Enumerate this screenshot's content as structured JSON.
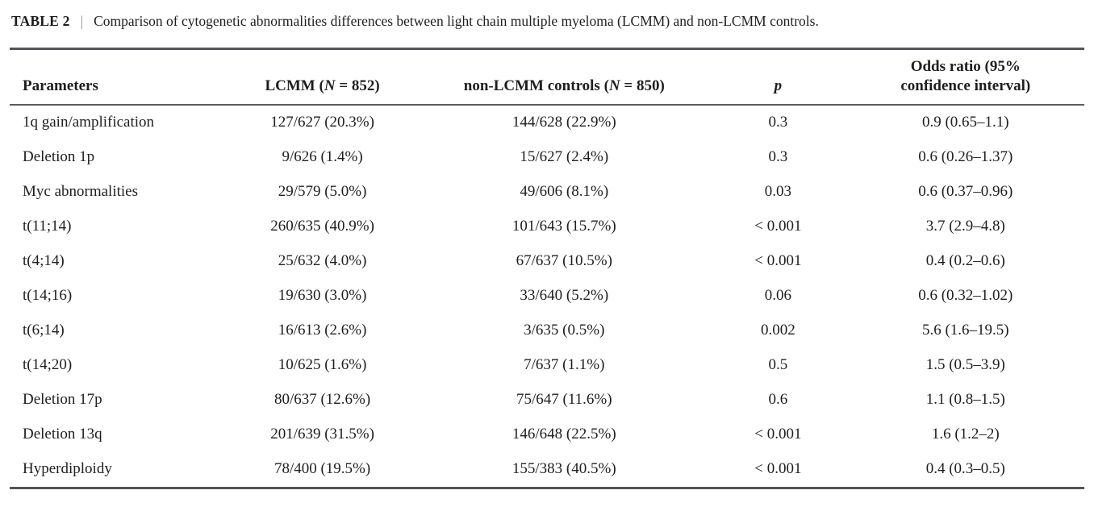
{
  "colors": {
    "text": "#1e1e20",
    "rule": "#54555b",
    "caption_divider": "#8c8c8c",
    "background": "#ffffff"
  },
  "caption": {
    "label": "TABLE 2",
    "divider": "|",
    "text": "Comparison of cytogenetic abnormalities differences between light chain multiple myeloma (LCMM) and non-LCMM controls."
  },
  "table": {
    "columns": [
      {
        "label": "Parameters"
      },
      {
        "pre": "LCMM (",
        "italic": "N",
        "post": " = 852)"
      },
      {
        "pre": "non-LCMM controls (",
        "italic": "N",
        "post": " = 850)"
      },
      {
        "italic": "p"
      },
      {
        "label": "Odds ratio (95% confidence interval)"
      }
    ],
    "rows": [
      {
        "parameter": "1q gain/amplification",
        "lcmm": "127/627 (20.3%)",
        "non_lcmm": "144/628 (22.9%)",
        "p": "0.3",
        "odds_ratio": "0.9 (0.65–1.1)"
      },
      {
        "parameter": "Deletion 1p",
        "lcmm": "9/626 (1.4%)",
        "non_lcmm": "15/627 (2.4%)",
        "p": "0.3",
        "odds_ratio": "0.6 (0.26–1.37)"
      },
      {
        "parameter": "Myc abnormalities",
        "lcmm": "29/579 (5.0%)",
        "non_lcmm": "49/606 (8.1%)",
        "p": "0.03",
        "odds_ratio": "0.6 (0.37–0.96)"
      },
      {
        "parameter": "t(11;14)",
        "lcmm": "260/635 (40.9%)",
        "non_lcmm": "101/643 (15.7%)",
        "p": "< 0.001",
        "odds_ratio": "3.7 (2.9–4.8)"
      },
      {
        "parameter": "t(4;14)",
        "lcmm": "25/632 (4.0%)",
        "non_lcmm": "67/637 (10.5%)",
        "p": "< 0.001",
        "odds_ratio": "0.4 (0.2–0.6)"
      },
      {
        "parameter": "t(14;16)",
        "lcmm": "19/630 (3.0%)",
        "non_lcmm": "33/640 (5.2%)",
        "p": "0.06",
        "odds_ratio": "0.6 (0.32–1.02)"
      },
      {
        "parameter": "t(6;14)",
        "lcmm": "16/613 (2.6%)",
        "non_lcmm": "3/635 (0.5%)",
        "p": "0.002",
        "odds_ratio": "5.6 (1.6–19.5)"
      },
      {
        "parameter": "t(14;20)",
        "lcmm": "10/625 (1.6%)",
        "non_lcmm": "7/637 (1.1%)",
        "p": "0.5",
        "odds_ratio": "1.5 (0.5–3.9)"
      },
      {
        "parameter": "Deletion 17p",
        "lcmm": "80/637 (12.6%)",
        "non_lcmm": "75/647 (11.6%)",
        "p": "0.6",
        "odds_ratio": "1.1 (0.8–1.5)"
      },
      {
        "parameter": "Deletion 13q",
        "lcmm": "201/639 (31.5%)",
        "non_lcmm": "146/648 (22.5%)",
        "p": "< 0.001",
        "odds_ratio": "1.6 (1.2–2)"
      },
      {
        "parameter": "Hyperdiploidy",
        "lcmm": "78/400 (19.5%)",
        "non_lcmm": "155/383 (40.5%)",
        "p": "< 0.001",
        "odds_ratio": "0.4 (0.3–0.5)"
      }
    ]
  }
}
